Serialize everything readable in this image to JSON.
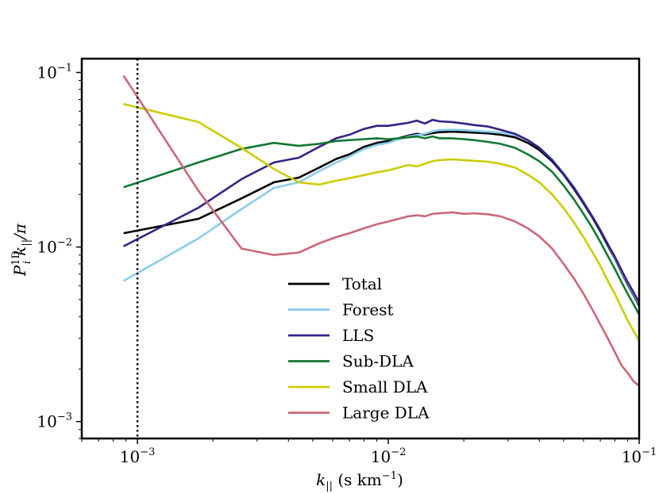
{
  "chart_data": {
    "type": "line",
    "title": "",
    "xlabel": "k_|| (s km^-1)",
    "ylabel": "P_i^1D k_|| / π",
    "xscale": "log",
    "yscale": "log",
    "xlim": [
      0.0006,
      0.1
    ],
    "ylim": [
      0.0008,
      0.12
    ],
    "xticks": [
      {
        "value": 0.001,
        "base": "10",
        "exp": "−3"
      },
      {
        "value": 0.01,
        "base": "10",
        "exp": "−2"
      },
      {
        "value": 0.1,
        "base": "10",
        "exp": "−1"
      }
    ],
    "yticks": [
      {
        "value": 0.001,
        "base": "10",
        "exp": "−3"
      },
      {
        "value": 0.01,
        "base": "10",
        "exp": "−2"
      },
      {
        "value": 0.1,
        "base": "10",
        "exp": "−1"
      }
    ],
    "vline": {
      "x": 0.001,
      "style": "dotted",
      "color": "#000000"
    },
    "grid": false,
    "legend_position": "lower-center",
    "series": [
      {
        "name": "Total",
        "color": "#000000",
        "x": [
          0.00088,
          0.00175,
          0.0026,
          0.0035,
          0.0044,
          0.0053,
          0.0062,
          0.007,
          0.008,
          0.009,
          0.01,
          0.011,
          0.012,
          0.013,
          0.014,
          0.015,
          0.016,
          0.018,
          0.02,
          0.022,
          0.025,
          0.028,
          0.032,
          0.036,
          0.04,
          0.045,
          0.05,
          0.055,
          0.06,
          0.065,
          0.07,
          0.075,
          0.08,
          0.085,
          0.09,
          0.095,
          0.1
        ],
        "y": [
          0.012,
          0.0145,
          0.019,
          0.0235,
          0.025,
          0.0285,
          0.032,
          0.034,
          0.0375,
          0.0395,
          0.0405,
          0.042,
          0.0435,
          0.0445,
          0.044,
          0.045,
          0.0455,
          0.0458,
          0.0455,
          0.0452,
          0.0448,
          0.044,
          0.0425,
          0.0395,
          0.036,
          0.031,
          0.026,
          0.0215,
          0.0178,
          0.0148,
          0.0123,
          0.0102,
          0.0086,
          0.0072,
          0.0061,
          0.0053,
          0.0046
        ]
      },
      {
        "name": "Forest",
        "color": "#88ccee",
        "x": [
          0.00088,
          0.00175,
          0.0026,
          0.0035,
          0.0044,
          0.0053,
          0.0062,
          0.007,
          0.008,
          0.009,
          0.01,
          0.011,
          0.012,
          0.013,
          0.014,
          0.015,
          0.016,
          0.018,
          0.02,
          0.022,
          0.025,
          0.028,
          0.032,
          0.036,
          0.04,
          0.045,
          0.05,
          0.055,
          0.06,
          0.065,
          0.07,
          0.075,
          0.08,
          0.085,
          0.09,
          0.095,
          0.1
        ],
        "y": [
          0.0064,
          0.0112,
          0.0165,
          0.0218,
          0.0235,
          0.0272,
          0.0305,
          0.033,
          0.0365,
          0.0385,
          0.0395,
          0.0415,
          0.043,
          0.0438,
          0.0445,
          0.046,
          0.0468,
          0.047,
          0.0468,
          0.0463,
          0.0458,
          0.0452,
          0.044,
          0.041,
          0.0372,
          0.0318,
          0.0265,
          0.022,
          0.0182,
          0.015,
          0.0125,
          0.0104,
          0.0087,
          0.0073,
          0.0062,
          0.0054,
          0.0047
        ]
      },
      {
        "name": "LLS",
        "color": "#332288",
        "x": [
          0.00088,
          0.00175,
          0.0026,
          0.0035,
          0.0044,
          0.0053,
          0.0062,
          0.007,
          0.008,
          0.009,
          0.01,
          0.011,
          0.012,
          0.013,
          0.014,
          0.015,
          0.016,
          0.018,
          0.02,
          0.022,
          0.025,
          0.028,
          0.032,
          0.036,
          0.04,
          0.045,
          0.05,
          0.055,
          0.06,
          0.065,
          0.07,
          0.075,
          0.08,
          0.085,
          0.09,
          0.095,
          0.1
        ],
        "y": [
          0.0101,
          0.0168,
          0.0245,
          0.0305,
          0.0325,
          0.0375,
          0.042,
          0.044,
          0.0475,
          0.0495,
          0.0495,
          0.0505,
          0.0515,
          0.053,
          0.051,
          0.0535,
          0.0525,
          0.052,
          0.051,
          0.05,
          0.049,
          0.047,
          0.0445,
          0.041,
          0.037,
          0.0315,
          0.0262,
          0.0218,
          0.018,
          0.015,
          0.0125,
          0.0104,
          0.0088,
          0.0074,
          0.0063,
          0.0055,
          0.0048
        ]
      },
      {
        "name": "Sub-DLA",
        "color": "#117733",
        "x": [
          0.00088,
          0.00175,
          0.0026,
          0.0035,
          0.0044,
          0.0053,
          0.0062,
          0.007,
          0.008,
          0.009,
          0.01,
          0.011,
          0.012,
          0.013,
          0.014,
          0.015,
          0.016,
          0.018,
          0.02,
          0.022,
          0.025,
          0.028,
          0.032,
          0.036,
          0.04,
          0.045,
          0.05,
          0.055,
          0.06,
          0.065,
          0.07,
          0.075,
          0.08,
          0.085,
          0.09,
          0.095,
          0.1
        ],
        "y": [
          0.022,
          0.0305,
          0.0365,
          0.0395,
          0.038,
          0.039,
          0.0405,
          0.041,
          0.0415,
          0.042,
          0.0415,
          0.042,
          0.0425,
          0.043,
          0.042,
          0.043,
          0.042,
          0.042,
          0.0415,
          0.041,
          0.04,
          0.039,
          0.037,
          0.034,
          0.031,
          0.027,
          0.0225,
          0.0187,
          0.0155,
          0.0129,
          0.0107,
          0.0089,
          0.0075,
          0.0063,
          0.0054,
          0.0047,
          0.0041
        ]
      },
      {
        "name": "Small DLA",
        "color": "#cccc00",
        "x": [
          0.00088,
          0.00175,
          0.0026,
          0.0035,
          0.0044,
          0.0053,
          0.0062,
          0.007,
          0.008,
          0.009,
          0.01,
          0.011,
          0.012,
          0.013,
          0.014,
          0.015,
          0.016,
          0.018,
          0.02,
          0.022,
          0.025,
          0.028,
          0.032,
          0.036,
          0.04,
          0.045,
          0.05,
          0.055,
          0.06,
          0.065,
          0.07,
          0.075,
          0.08,
          0.085,
          0.09,
          0.095,
          0.1
        ],
        "y": [
          0.066,
          0.052,
          0.037,
          0.028,
          0.0235,
          0.0228,
          0.024,
          0.0248,
          0.0258,
          0.0268,
          0.0275,
          0.0285,
          0.0295,
          0.029,
          0.03,
          0.031,
          0.0315,
          0.0318,
          0.0315,
          0.0312,
          0.0308,
          0.03,
          0.0285,
          0.026,
          0.0235,
          0.02,
          0.0167,
          0.0138,
          0.0114,
          0.0094,
          0.0078,
          0.0064,
          0.0054,
          0.0045,
          0.0038,
          0.0033,
          0.0029
        ]
      },
      {
        "name": "Large DLA",
        "color": "#cc6677",
        "x": [
          0.00088,
          0.00175,
          0.0026,
          0.0035,
          0.0044,
          0.0053,
          0.0062,
          0.007,
          0.008,
          0.009,
          0.01,
          0.011,
          0.012,
          0.013,
          0.014,
          0.015,
          0.016,
          0.018,
          0.02,
          0.022,
          0.025,
          0.028,
          0.032,
          0.036,
          0.04,
          0.045,
          0.05,
          0.055,
          0.06,
          0.065,
          0.07,
          0.075,
          0.08,
          0.085,
          0.09,
          0.095,
          0.1
        ],
        "y": [
          0.096,
          0.021,
          0.0098,
          0.009,
          0.0093,
          0.0105,
          0.0114,
          0.012,
          0.0128,
          0.0135,
          0.014,
          0.0145,
          0.015,
          0.0152,
          0.015,
          0.0155,
          0.0156,
          0.0158,
          0.0155,
          0.0156,
          0.0154,
          0.015,
          0.014,
          0.0128,
          0.0115,
          0.0098,
          0.008,
          0.0066,
          0.0054,
          0.0044,
          0.0036,
          0.003,
          0.0025,
          0.0021,
          0.0019,
          0.0017,
          0.0016
        ]
      }
    ]
  }
}
